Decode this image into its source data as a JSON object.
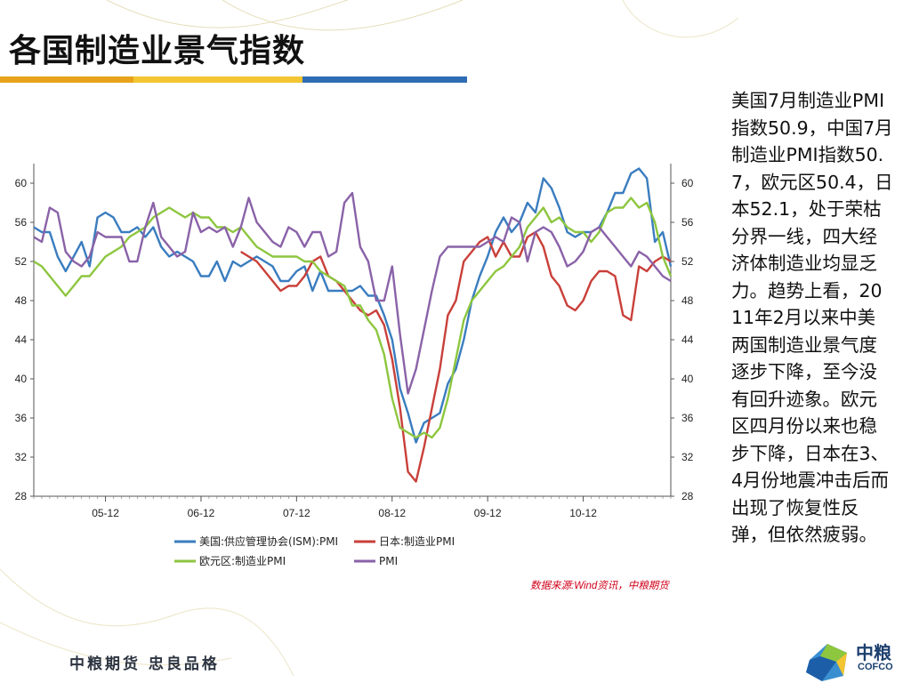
{
  "title": "各国制造业景气指数",
  "title_bar_colors": [
    "#e8a31a",
    "#f2c531",
    "#8dc63f",
    "#2e6db4"
  ],
  "side_text": "美国7月制造业PMI指数50.9，中国7月制造业PMI指数50.7，欧元区50.4，日本52.1，处于荣枯分界一线，四大经济体制造业均显乏力。趋势上看，2011年2月以来中美两国制造业景气度逐步下降，至今没有回升迹象。欧元区四月份以来也稳步下降，日本在3、4月份地震冲击后而出现了恢复性反弹，但依然疲弱。",
  "source": "数据来源:Wind资讯，中粮期货",
  "footer_slogan": "中粮期货 忠良品格",
  "logo": {
    "cn": "中粮",
    "en": "COFCO"
  },
  "chart_data": {
    "type": "line",
    "x_tick_labels": [
      "05-12",
      "06-12",
      "07-12",
      "08-12",
      "09-12",
      "10-12"
    ],
    "ylim": [
      28,
      62
    ],
    "y_ticks": [
      28,
      32,
      36,
      40,
      44,
      48,
      52,
      56,
      60
    ],
    "grid": false,
    "legend": "bottom",
    "series": [
      {
        "name": "美国:供应管理协会(ISM):PMI",
        "color": "#3a7dbf",
        "values": [
          55.5,
          55.0,
          55.0,
          52.5,
          51.0,
          52.5,
          54.0,
          51.5,
          56.5,
          57.0,
          56.5,
          55.0,
          55.0,
          55.5,
          54.5,
          55.5,
          53.5,
          52.5,
          53.0,
          52.5,
          52.0,
          50.5,
          50.5,
          52.0,
          50.0,
          52.0,
          51.5,
          52.0,
          52.5,
          52.0,
          51.5,
          50.0,
          50.0,
          51.0,
          51.5,
          49.0,
          51.0,
          49.0,
          49.0,
          49.0,
          49.0,
          49.5,
          48.5,
          48.5,
          46.5,
          44.0,
          39.0,
          36.5,
          33.5,
          35.5,
          36.0,
          36.5,
          39.5,
          41.0,
          44.0,
          48.0,
          50.5,
          52.5,
          55.0,
          56.5,
          55.0,
          56.0,
          58.0,
          57.0,
          60.5,
          59.5,
          57.5,
          55.0,
          54.5,
          55.0,
          55.0,
          55.5,
          57.0,
          59.0,
          59.0,
          61.0,
          61.5,
          60.5,
          54.0,
          55.0,
          51.5
        ]
      },
      {
        "name": "日本:制造业PMI",
        "color": "#c9403a",
        "values": [
          null,
          null,
          null,
          null,
          null,
          null,
          null,
          null,
          null,
          null,
          null,
          null,
          null,
          null,
          null,
          null,
          null,
          null,
          null,
          null,
          null,
          null,
          null,
          null,
          null,
          null,
          53.0,
          52.5,
          52.0,
          51.0,
          50.0,
          49.0,
          49.5,
          49.5,
          50.5,
          52.0,
          52.5,
          50.5,
          50.0,
          49.0,
          48.0,
          47.0,
          46.5,
          47.0,
          45.5,
          42.0,
          37.0,
          30.5,
          29.5,
          33.0,
          37.0,
          41.0,
          46.5,
          48.0,
          52.0,
          53.0,
          54.0,
          54.5,
          52.5,
          54.0,
          52.5,
          52.5,
          54.5,
          55.0,
          53.5,
          50.5,
          49.5,
          47.5,
          47.0,
          48.0,
          50.0,
          51.0,
          51.0,
          50.5,
          46.5,
          46.0,
          51.5,
          51.0,
          52.0,
          52.5,
          52.0
        ]
      },
      {
        "name": "欧元区:制造业PMI",
        "color": "#8dc63f",
        "values": [
          52.0,
          51.5,
          50.5,
          49.5,
          48.5,
          49.5,
          50.5,
          50.5,
          51.5,
          52.5,
          53.0,
          53.5,
          54.5,
          55.0,
          55.5,
          56.5,
          57.0,
          57.5,
          57.0,
          56.5,
          57.0,
          56.5,
          56.5,
          55.5,
          55.5,
          55.0,
          55.5,
          54.5,
          53.5,
          53.0,
          52.5,
          52.5,
          52.5,
          52.5,
          52.0,
          52.0,
          51.0,
          50.5,
          50.0,
          49.5,
          47.5,
          47.5,
          46.0,
          45.0,
          42.5,
          38.0,
          35.0,
          34.5,
          34.0,
          34.5,
          34.0,
          35.0,
          38.0,
          42.0,
          46.0,
          48.0,
          49.0,
          50.0,
          51.0,
          51.5,
          52.5,
          53.5,
          55.5,
          56.5,
          57.5,
          56.0,
          56.5,
          55.5,
          55.0,
          55.0,
          54.0,
          55.0,
          57.0,
          57.5,
          57.5,
          58.5,
          57.5,
          58.0,
          56.0,
          52.5,
          50.5
        ]
      },
      {
        "name": "PMI",
        "color": "#8a62a8",
        "values": [
          54.5,
          54.0,
          57.5,
          57.0,
          53.0,
          52.0,
          51.5,
          52.5,
          55.0,
          54.5,
          54.5,
          54.5,
          52.0,
          52.0,
          55.5,
          58.0,
          54.5,
          53.5,
          52.5,
          53.0,
          57.0,
          55.0,
          55.5,
          55.0,
          55.5,
          53.5,
          55.5,
          58.5,
          56.0,
          55.0,
          54.0,
          53.5,
          55.5,
          55.0,
          53.5,
          55.0,
          55.0,
          52.5,
          53.0,
          58.0,
          59.0,
          53.5,
          52.0,
          48.0,
          48.0,
          51.5,
          44.5,
          38.5,
          41.0,
          45.0,
          49.0,
          52.5,
          53.5,
          53.5,
          53.5,
          53.5,
          53.5,
          54.0,
          54.5,
          54.0,
          56.5,
          56.0,
          52.0,
          55.0,
          55.5,
          55.0,
          53.5,
          51.5,
          52.0,
          53.0,
          55.0,
          55.5,
          54.5,
          53.5,
          52.5,
          51.5,
          53.0,
          52.5,
          51.5,
          50.5,
          50.0
        ]
      }
    ]
  }
}
